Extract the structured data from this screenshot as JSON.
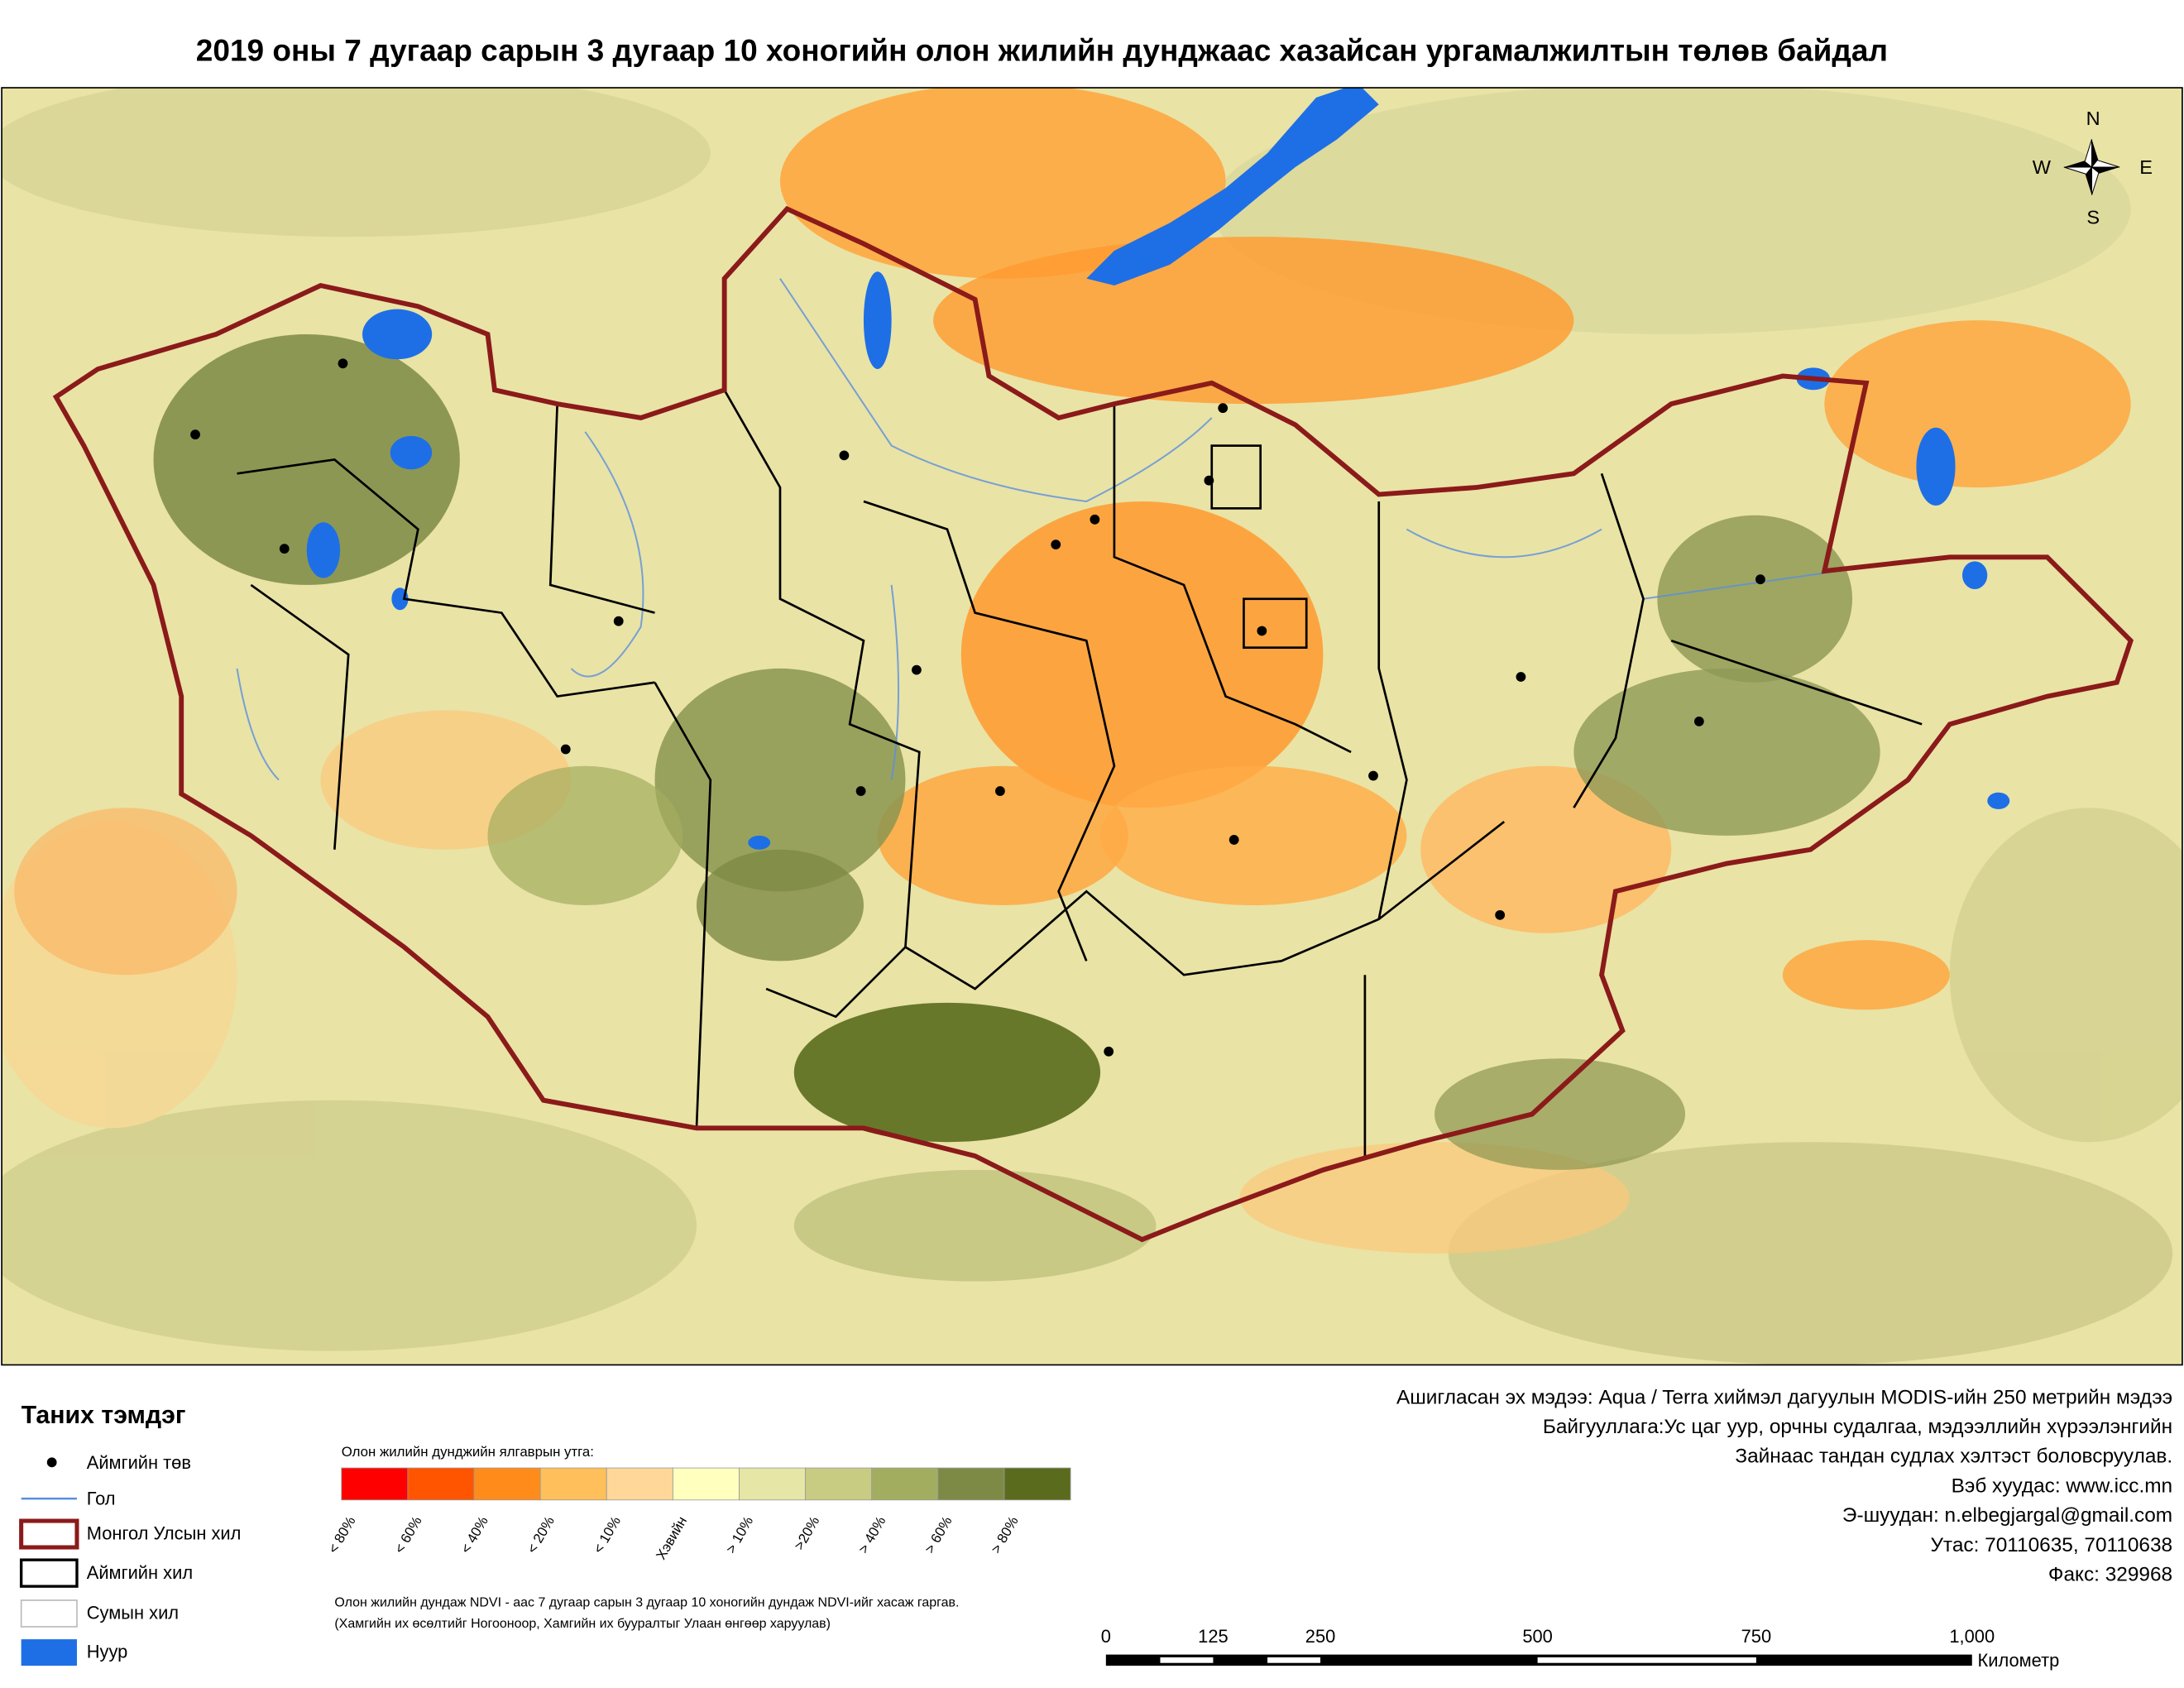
{
  "title": "2019 оны 7 дугаар сарын 3 дугаар 10 хоногийн олон жилийн дунджаас хазайсан ургамалжилтын төлөв байдал",
  "compass": {
    "n": "N",
    "s": "S",
    "e": "E",
    "w": "W"
  },
  "legend": {
    "title": "Таних тэмдэг",
    "items": [
      "Аймгийн төв",
      "Гол",
      "Монгол Улсын хил",
      "Аймгийн хил",
      "Сумын хил",
      "Нуур"
    ]
  },
  "scale": {
    "caption": "Олон жилийн дунджийн ялгаврын утга:",
    "classes": [
      {
        "label": "< 80%",
        "color": "#ff0000"
      },
      {
        "label": "< 60%",
        "color": "#ff5500"
      },
      {
        "label": "< 40%",
        "color": "#ff8c1a"
      },
      {
        "label": "< 20%",
        "color": "#ffbf5a"
      },
      {
        "label": "< 10%",
        "color": "#ffd899"
      },
      {
        "label": "Хэвийн",
        "color": "#ffffbe"
      },
      {
        "label": "> 10%",
        "color": "#e6e6a6"
      },
      {
        "label": ">20%",
        "color": "#c8cc82"
      },
      {
        "label": "> 40%",
        "color": "#a3ad60"
      },
      {
        "label": "> 60%",
        "color": "#7d8a45"
      },
      {
        "label": "> 80%",
        "color": "#5a6b1e"
      }
    ]
  },
  "note": [
    "Олон жилийн дундаж NDVI - аас 7 дугаар сарын 3 дугаар 10 хоногийн дундаж NDVI-ийг хасаж гаргав.",
    "(Хамгийн их өсөлтийг Ногооноор,  Хамгийн их бууралтыг Улаан өнгөөр харуулав)"
  ],
  "credits": [
    "Ашигласан эх мэдээ: Aqua / Terra хиймэл дагуулын MODIS-ийн 250 метрийн мэдээ",
    "Байгууллага:Ус цаг уур, орчны судалгаа, мэдээллийн хүрээлэнгийн",
    "Зайнаас тандан судлах хэлтэст боловсруулав.",
    "Вэб хуудас: www.icc.mn",
    "Э-шуудан: n.elbegjargal@gmail.com",
    "Утас: 70110635, 70110638",
    "Факс: 329968"
  ],
  "scale_bar": {
    "labels": [
      "0",
      "125",
      "250",
      "500",
      "750",
      "1,000"
    ],
    "unit": "Километр"
  }
}
